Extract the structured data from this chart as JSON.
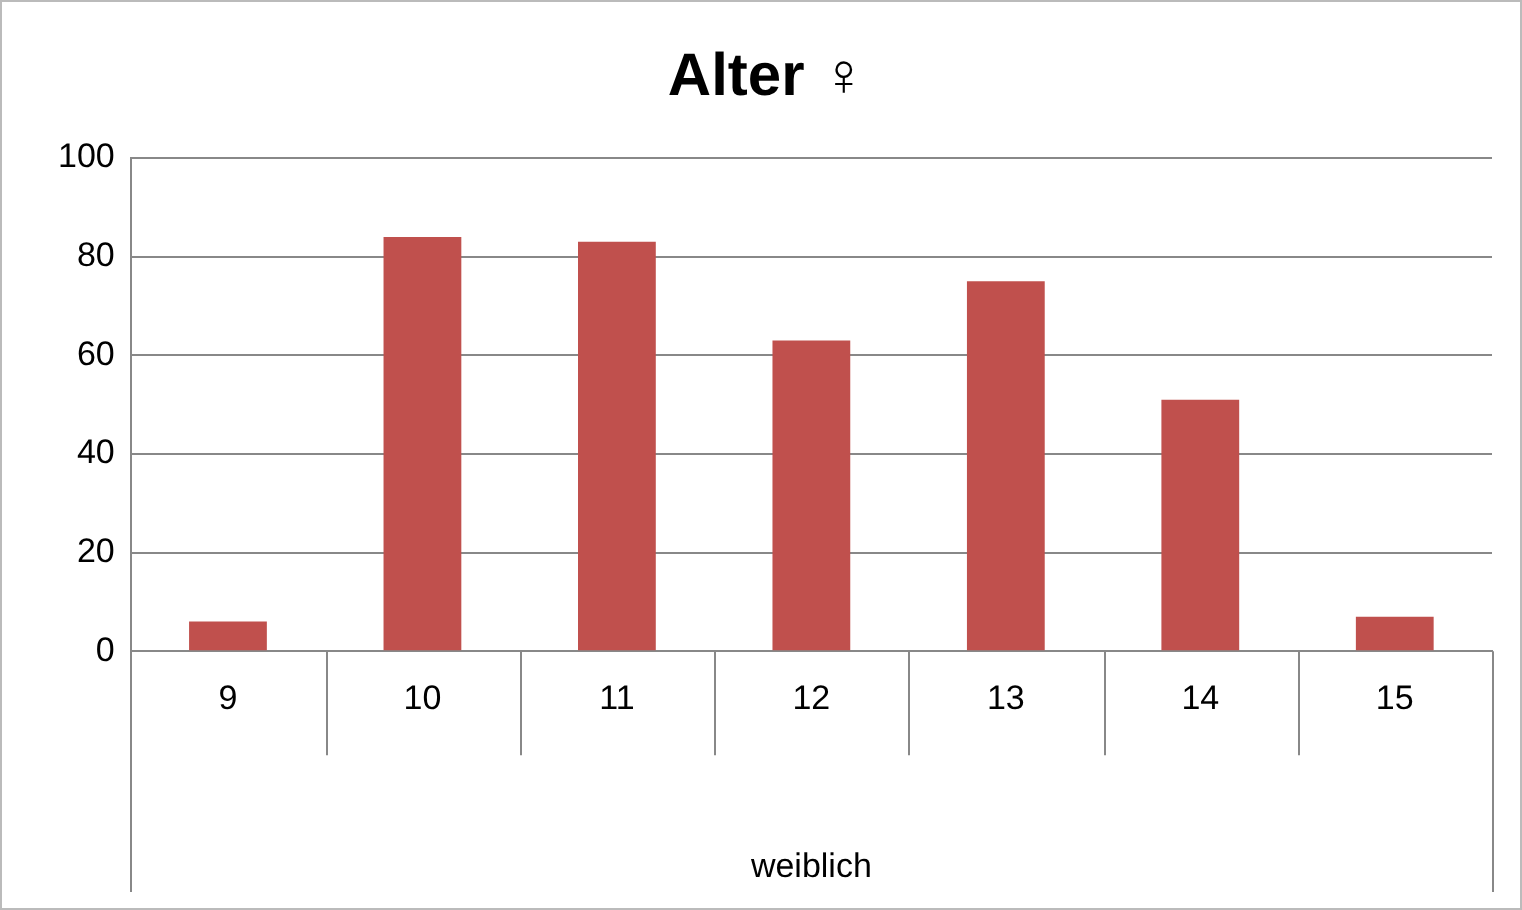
{
  "chart_data": {
    "type": "bar",
    "title": "Alter ♀",
    "xlabel": "weiblich",
    "categories": [
      "9",
      "10",
      "11",
      "12",
      "13",
      "14",
      "15"
    ],
    "values": [
      6,
      84,
      83,
      63,
      75,
      51,
      7
    ],
    "color": "#c0504d",
    "ylim": [
      0,
      100
    ],
    "yticks": [
      0,
      20,
      40,
      60,
      80,
      100
    ],
    "grid": "y",
    "legend": false
  }
}
